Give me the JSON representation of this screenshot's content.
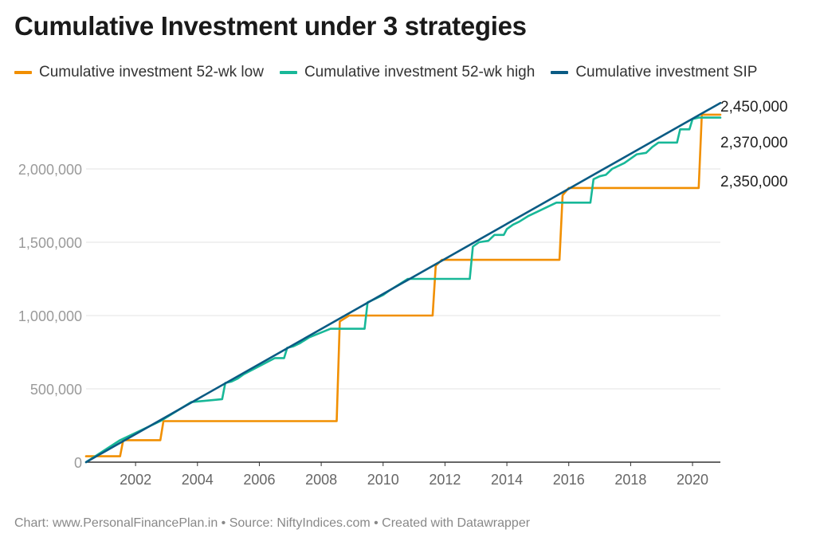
{
  "title": "Cumulative Investment under 3 strategies",
  "source_line": "Chart: www.PersonalFinancePlan.in • Source: NiftyIndices.com • Created with Datawrapper",
  "chart_data": {
    "type": "line",
    "title": "Cumulative Investment under 3 strategies",
    "xlabel": "",
    "ylabel": "",
    "xlim": [
      2000.4,
      2020.9
    ],
    "ylim": [
      0,
      2500000
    ],
    "x_ticks": [
      2002,
      2004,
      2006,
      2008,
      2010,
      2012,
      2014,
      2016,
      2018,
      2020
    ],
    "y_ticks": [
      0,
      500000,
      1000000,
      1500000,
      2000000
    ],
    "y_tick_labels": [
      "0",
      "500,000",
      "1,000,000",
      "1,500,000",
      "2,000,000"
    ],
    "grid": "horizontal",
    "legend_position": "top",
    "series": [
      {
        "name": "Cumulative investment 52-wk low",
        "color": "#f18f01",
        "end_label": "2,370,000",
        "points": [
          [
            2000.4,
            40000
          ],
          [
            2001.5,
            40000
          ],
          [
            2001.6,
            150000
          ],
          [
            2002.8,
            150000
          ],
          [
            2002.9,
            280000
          ],
          [
            2008.5,
            280000
          ],
          [
            2008.6,
            960000
          ],
          [
            2008.9,
            1000000
          ],
          [
            2011.6,
            1000000
          ],
          [
            2011.7,
            1340000
          ],
          [
            2011.9,
            1380000
          ],
          [
            2015.7,
            1380000
          ],
          [
            2015.8,
            1820000
          ],
          [
            2016.0,
            1870000
          ],
          [
            2020.2,
            1870000
          ],
          [
            2020.3,
            2370000
          ],
          [
            2020.9,
            2370000
          ]
        ]
      },
      {
        "name": "Cumulative investment 52-wk high",
        "color": "#18b898",
        "end_label": "2,350,000",
        "points": [
          [
            2000.4,
            0
          ],
          [
            2001.5,
            150000
          ],
          [
            2002.8,
            280000
          ],
          [
            2003.8,
            410000
          ],
          [
            2004.8,
            430000
          ],
          [
            2004.9,
            540000
          ],
          [
            2005.1,
            550000
          ],
          [
            2005.3,
            570000
          ],
          [
            2005.5,
            600000
          ],
          [
            2006.5,
            710000
          ],
          [
            2006.8,
            710000
          ],
          [
            2006.9,
            780000
          ],
          [
            2007.1,
            790000
          ],
          [
            2007.3,
            810000
          ],
          [
            2007.6,
            850000
          ],
          [
            2008.3,
            910000
          ],
          [
            2009.4,
            910000
          ],
          [
            2009.5,
            1090000
          ],
          [
            2009.8,
            1120000
          ],
          [
            2010.0,
            1140000
          ],
          [
            2010.2,
            1170000
          ],
          [
            2010.5,
            1210000
          ],
          [
            2010.8,
            1250000
          ],
          [
            2012.8,
            1250000
          ],
          [
            2012.9,
            1470000
          ],
          [
            2013.1,
            1500000
          ],
          [
            2013.4,
            1510000
          ],
          [
            2013.6,
            1550000
          ],
          [
            2013.9,
            1550000
          ],
          [
            2014.0,
            1590000
          ],
          [
            2014.2,
            1620000
          ],
          [
            2014.4,
            1640000
          ],
          [
            2014.7,
            1680000
          ],
          [
            2015.0,
            1710000
          ],
          [
            2015.3,
            1740000
          ],
          [
            2015.6,
            1770000
          ],
          [
            2016.7,
            1770000
          ],
          [
            2016.8,
            1930000
          ],
          [
            2017.0,
            1950000
          ],
          [
            2017.2,
            1960000
          ],
          [
            2017.4,
            2000000
          ],
          [
            2017.8,
            2040000
          ],
          [
            2018.0,
            2070000
          ],
          [
            2018.2,
            2100000
          ],
          [
            2018.5,
            2110000
          ],
          [
            2018.7,
            2150000
          ],
          [
            2018.9,
            2180000
          ],
          [
            2019.5,
            2180000
          ],
          [
            2019.6,
            2270000
          ],
          [
            2019.9,
            2270000
          ],
          [
            2020.0,
            2340000
          ],
          [
            2020.2,
            2350000
          ],
          [
            2020.9,
            2350000
          ]
        ]
      },
      {
        "name": "Cumulative investment SIP",
        "color": "#0a5b84",
        "end_label": "2,450,000",
        "points": [
          [
            2000.4,
            0
          ],
          [
            2020.9,
            2450000
          ]
        ]
      }
    ]
  }
}
